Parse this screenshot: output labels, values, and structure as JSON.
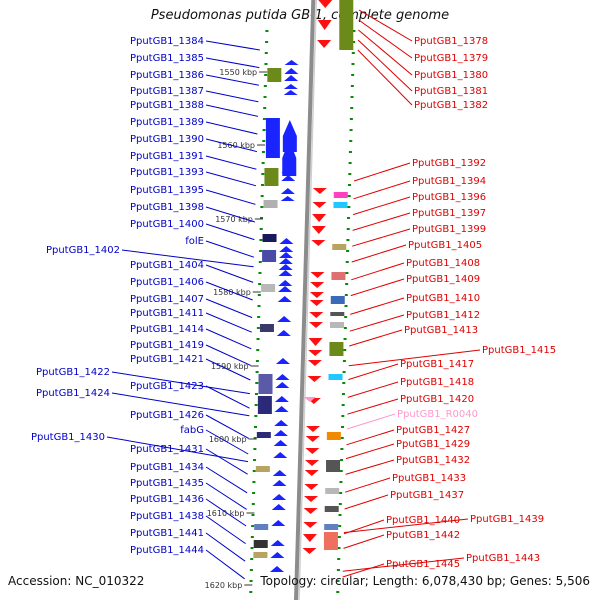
{
  "title": "Pseudomonas putida GB-1, complete genome",
  "footer": {
    "accession": "Accession: NC_010322",
    "summary": "Topology: circular; Length: 6,078,430 bp; Genes: 5,506"
  },
  "colors": {
    "left_labels": "#0000c8",
    "right_labels": "#e00000",
    "rna_label": "#ff99cc",
    "ticks": "#0a8a0a",
    "backbone": "#8c8c8c"
  },
  "bp_ticks": [
    "1550 kbp",
    "1560 kbp",
    "1570 kbp",
    "1580 kbp",
    "1590 kbp",
    "1600 kbp",
    "1610 kbp",
    "1620 kbp"
  ],
  "left_labels": [
    "PputGB1_1384",
    "PputGB1_1385",
    "PputGB1_1386",
    "PputGB1_1387",
    "PputGB1_1388",
    "PputGB1_1389",
    "PputGB1_1390",
    "PputGB1_1391",
    "PputGB1_1393",
    "PputGB1_1395",
    "PputGB1_1398",
    "PputGB1_1400",
    "folE",
    "PputGB1_1402",
    "PputGB1_1404",
    "PputGB1_1406",
    "PputGB1_1407",
    "PputGB1_1411",
    "PputGB1_1414",
    "PputGB1_1419",
    "PputGB1_1421",
    "PputGB1_1422",
    "PputGB1_1423",
    "PputGB1_1424",
    "PputGB1_1426",
    "fabG",
    "PputGB1_1430",
    "PputGB1_1431",
    "PputGB1_1434",
    "PputGB1_1435",
    "PputGB1_1436",
    "PputGB1_1438",
    "PputGB1_1441",
    "PputGB1_1444"
  ],
  "right_labels": [
    "PputGB1_1378",
    "PputGB1_1379",
    "PputGB1_1380",
    "PputGB1_1381",
    "PputGB1_1382",
    "PputGB1_1392",
    "PputGB1_1394",
    "PputGB1_1396",
    "PputGB1_1397",
    "PputGB1_1399",
    "PputGB1_1405",
    "PputGB1_1408",
    "PputGB1_1409",
    "PputGB1_1410",
    "PputGB1_1412",
    "PputGB1_1413",
    "PputGB1_1415",
    "PputGB1_1417",
    "PputGB1_1418",
    "PputGB1_1420",
    "PputGB1_R0040",
    "PputGB1_1427",
    "PputGB1_1429",
    "PputGB1_1432",
    "PputGB1_1433",
    "PputGB1_1437",
    "PputGB1_1440",
    "PputGB1_1439",
    "PputGB1_1442",
    "PputGB1_1443",
    "PputGB1_1445"
  ]
}
